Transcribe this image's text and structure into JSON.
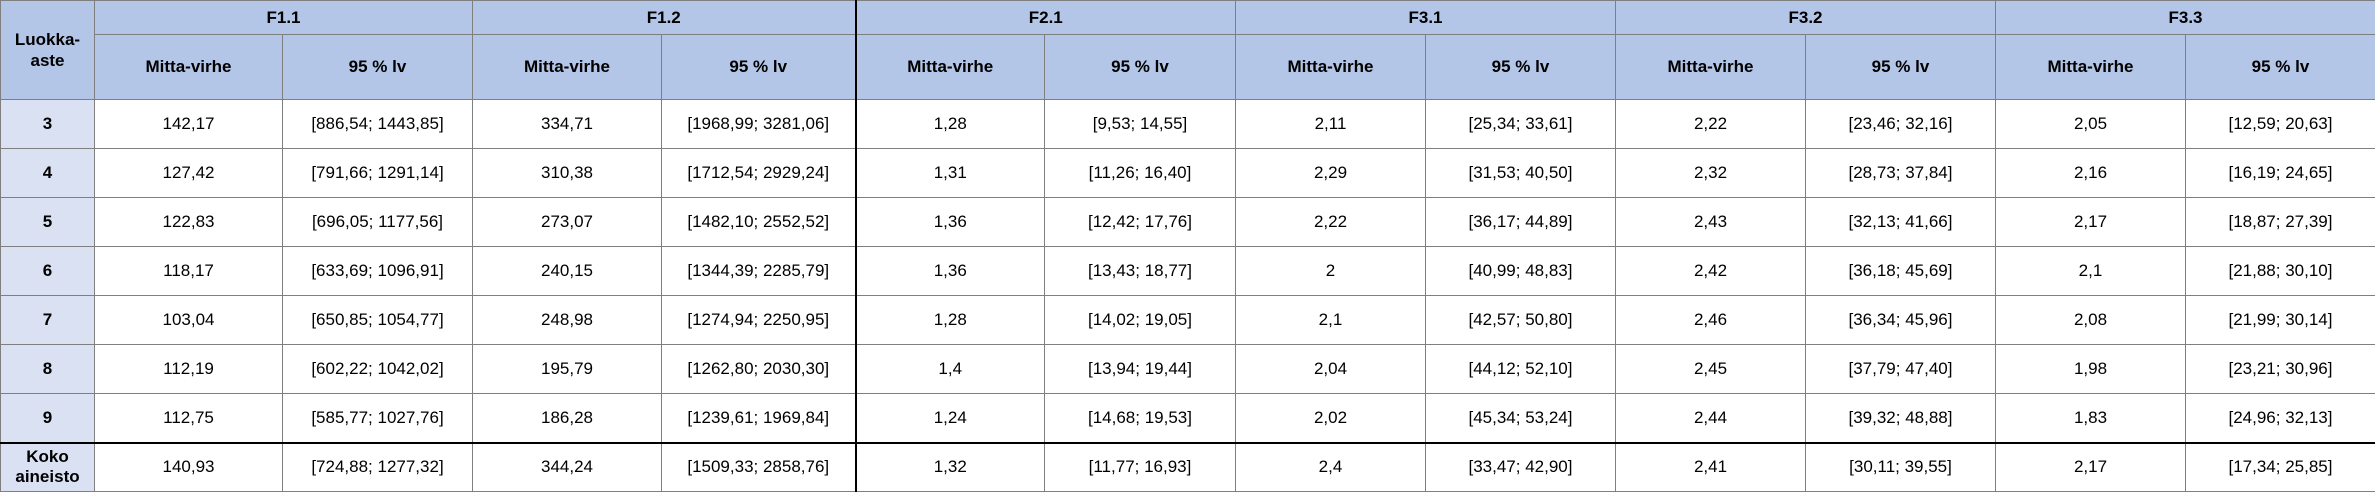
{
  "corner_label": "Luokka-aste",
  "groups": [
    "F1.1",
    "F1.2",
    "F2.1",
    "F3.1",
    "F3.2",
    "F3.3"
  ],
  "subheaders": {
    "error": "Mitta-virhe",
    "ci": "95 % lv"
  },
  "rows": [
    {
      "label": "3",
      "cells": [
        "142,17",
        "[886,54; 1443,85]",
        "334,71",
        "[1968,99; 3281,06]",
        "1,28",
        "[9,53; 14,55]",
        "2,11",
        "[25,34; 33,61]",
        "2,22",
        "[23,46; 32,16]",
        "2,05",
        "[12,59; 20,63]"
      ]
    },
    {
      "label": "4",
      "cells": [
        "127,42",
        "[791,66; 1291,14]",
        "310,38",
        "[1712,54; 2929,24]",
        "1,31",
        "[11,26; 16,40]",
        "2,29",
        "[31,53; 40,50]",
        "2,32",
        "[28,73; 37,84]",
        "2,16",
        "[16,19; 24,65]"
      ]
    },
    {
      "label": "5",
      "cells": [
        "122,83",
        "[696,05; 1177,56]",
        "273,07",
        "[1482,10; 2552,52]",
        "1,36",
        "[12,42; 17,76]",
        "2,22",
        "[36,17; 44,89]",
        "2,43",
        "[32,13; 41,66]",
        "2,17",
        "[18,87; 27,39]"
      ]
    },
    {
      "label": "6",
      "cells": [
        "118,17",
        "[633,69; 1096,91]",
        "240,15",
        "[1344,39; 2285,79]",
        "1,36",
        "[13,43; 18,77]",
        "2",
        "[40,99; 48,83]",
        "2,42",
        "[36,18; 45,69]",
        "2,1",
        "[21,88; 30,10]"
      ]
    },
    {
      "label": "7",
      "cells": [
        "103,04",
        "[650,85; 1054,77]",
        "248,98",
        "[1274,94; 2250,95]",
        "1,28",
        "[14,02; 19,05]",
        "2,1",
        "[42,57; 50,80]",
        "2,46",
        "[36,34; 45,96]",
        "2,08",
        "[21,99; 30,14]"
      ]
    },
    {
      "label": "8",
      "cells": [
        "112,19",
        "[602,22; 1042,02]",
        "195,79",
        "[1262,80; 2030,30]",
        "1,4",
        "[13,94; 19,44]",
        "2,04",
        "[44,12; 52,10]",
        "2,45",
        "[37,79; 47,40]",
        "1,98",
        "[23,21; 30,96]"
      ]
    },
    {
      "label": "9",
      "cells": [
        "112,75",
        "[585,77; 1027,76]",
        "186,28",
        "[1239,61; 1969,84]",
        "1,24",
        "[14,68; 19,53]",
        "2,02",
        "[45,34; 53,24]",
        "2,44",
        "[39,32; 48,88]",
        "1,83",
        "[24,96; 32,13]"
      ]
    }
  ],
  "total_row": {
    "label": "Koko aineisto",
    "cells": [
      "140,93",
      "[724,88; 1277,32]",
      "344,24",
      "[1509,33; 2858,76]",
      "1,32",
      "[11,77; 16,93]",
      "2,4",
      "[33,47; 42,90]",
      "2,41",
      "[30,11; 39,55]",
      "2,17",
      "[17,34; 25,85]"
    ]
  },
  "colors": {
    "header_fill": "#b4c6e7",
    "row_header_fill": "#d9e1f2",
    "grid_line": "#7f7f7f",
    "separator_line": "#000000"
  }
}
